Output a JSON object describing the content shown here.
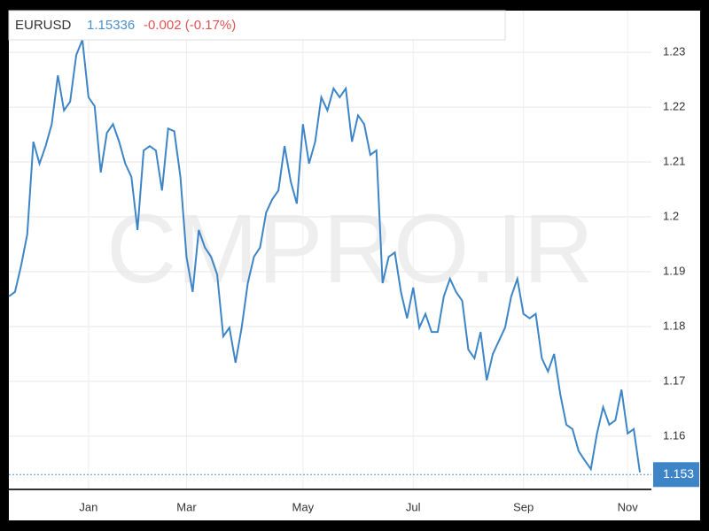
{
  "chart_data": {
    "type": "line",
    "title": "EURUSD",
    "price_label": "1.15336",
    "change_label": "-0.002 (-0.17%)",
    "watermark": "CMPRO.IR",
    "last_value": 1.153,
    "categories": [
      null,
      null,
      null,
      null,
      null,
      null,
      null,
      null,
      null,
      null,
      null,
      null,
      null,
      "Jan",
      null,
      null,
      null,
      null,
      null,
      null,
      null,
      null,
      null,
      null,
      null,
      null,
      null,
      null,
      null,
      "Mar",
      null,
      null,
      null,
      null,
      null,
      null,
      null,
      null,
      null,
      null,
      null,
      null,
      null,
      null,
      null,
      null,
      null,
      null,
      "May",
      null,
      null,
      null,
      null,
      null,
      null,
      null,
      null,
      null,
      null,
      null,
      null,
      null,
      null,
      null,
      null,
      null,
      "Jul",
      null,
      null,
      null,
      null,
      null,
      null,
      null,
      null,
      null,
      null,
      null,
      null,
      null,
      null,
      null,
      null,
      null,
      "Sep",
      null,
      null,
      null,
      null,
      null,
      null,
      null,
      null,
      null,
      null,
      null,
      null,
      null,
      null,
      null,
      null,
      "Nov",
      null,
      null
    ],
    "series": [
      {
        "name": "EURUSD",
        "color": "#3d85c6",
        "values": [
          1.1855,
          1.1863,
          1.1911,
          1.1968,
          1.2137,
          1.2097,
          1.2129,
          1.2169,
          1.2258,
          1.2194,
          1.221,
          1.2295,
          1.2323,
          1.2218,
          1.2202,
          1.2081,
          1.2153,
          1.2169,
          1.2137,
          1.2097,
          1.2073,
          1.1976,
          1.2121,
          1.2129,
          1.2121,
          1.2048,
          1.2161,
          1.2156,
          1.2073,
          1.1927,
          1.1863,
          1.1976,
          1.1944,
          1.1927,
          1.1895,
          1.1782,
          1.1798,
          1.1734,
          1.1798,
          1.1879,
          1.1927,
          1.1944,
          1.2008,
          1.2032,
          1.2048,
          1.2129,
          1.2065,
          1.2024,
          1.2169,
          1.2097,
          1.2137,
          1.2218,
          1.2194,
          1.2234,
          1.2218,
          1.2234,
          1.2137,
          1.2185,
          1.2169,
          1.2113,
          1.2121,
          1.1879,
          1.1927,
          1.1935,
          1.1863,
          1.1815,
          1.1871,
          1.1798,
          1.1823,
          1.179,
          1.179,
          1.1855,
          1.1887,
          1.1863,
          1.1847,
          1.1758,
          1.1742,
          1.179,
          1.1702,
          1.175,
          1.1774,
          1.1798,
          1.1855,
          1.1887,
          1.1823,
          1.1815,
          1.1823,
          1.1742,
          1.1718,
          1.175,
          1.1677,
          1.1621,
          1.1613,
          1.1573,
          1.1556,
          1.154,
          1.1605,
          1.1653,
          1.1621,
          1.1629,
          1.1685,
          1.1605,
          1.1613,
          1.1534
        ]
      }
    ],
    "ylim": [
      1.1503,
      1.2376
    ],
    "yticks": [
      1.16,
      1.17,
      1.18,
      1.19,
      1.2,
      1.21,
      1.22,
      1.23
    ],
    "grid": true
  }
}
